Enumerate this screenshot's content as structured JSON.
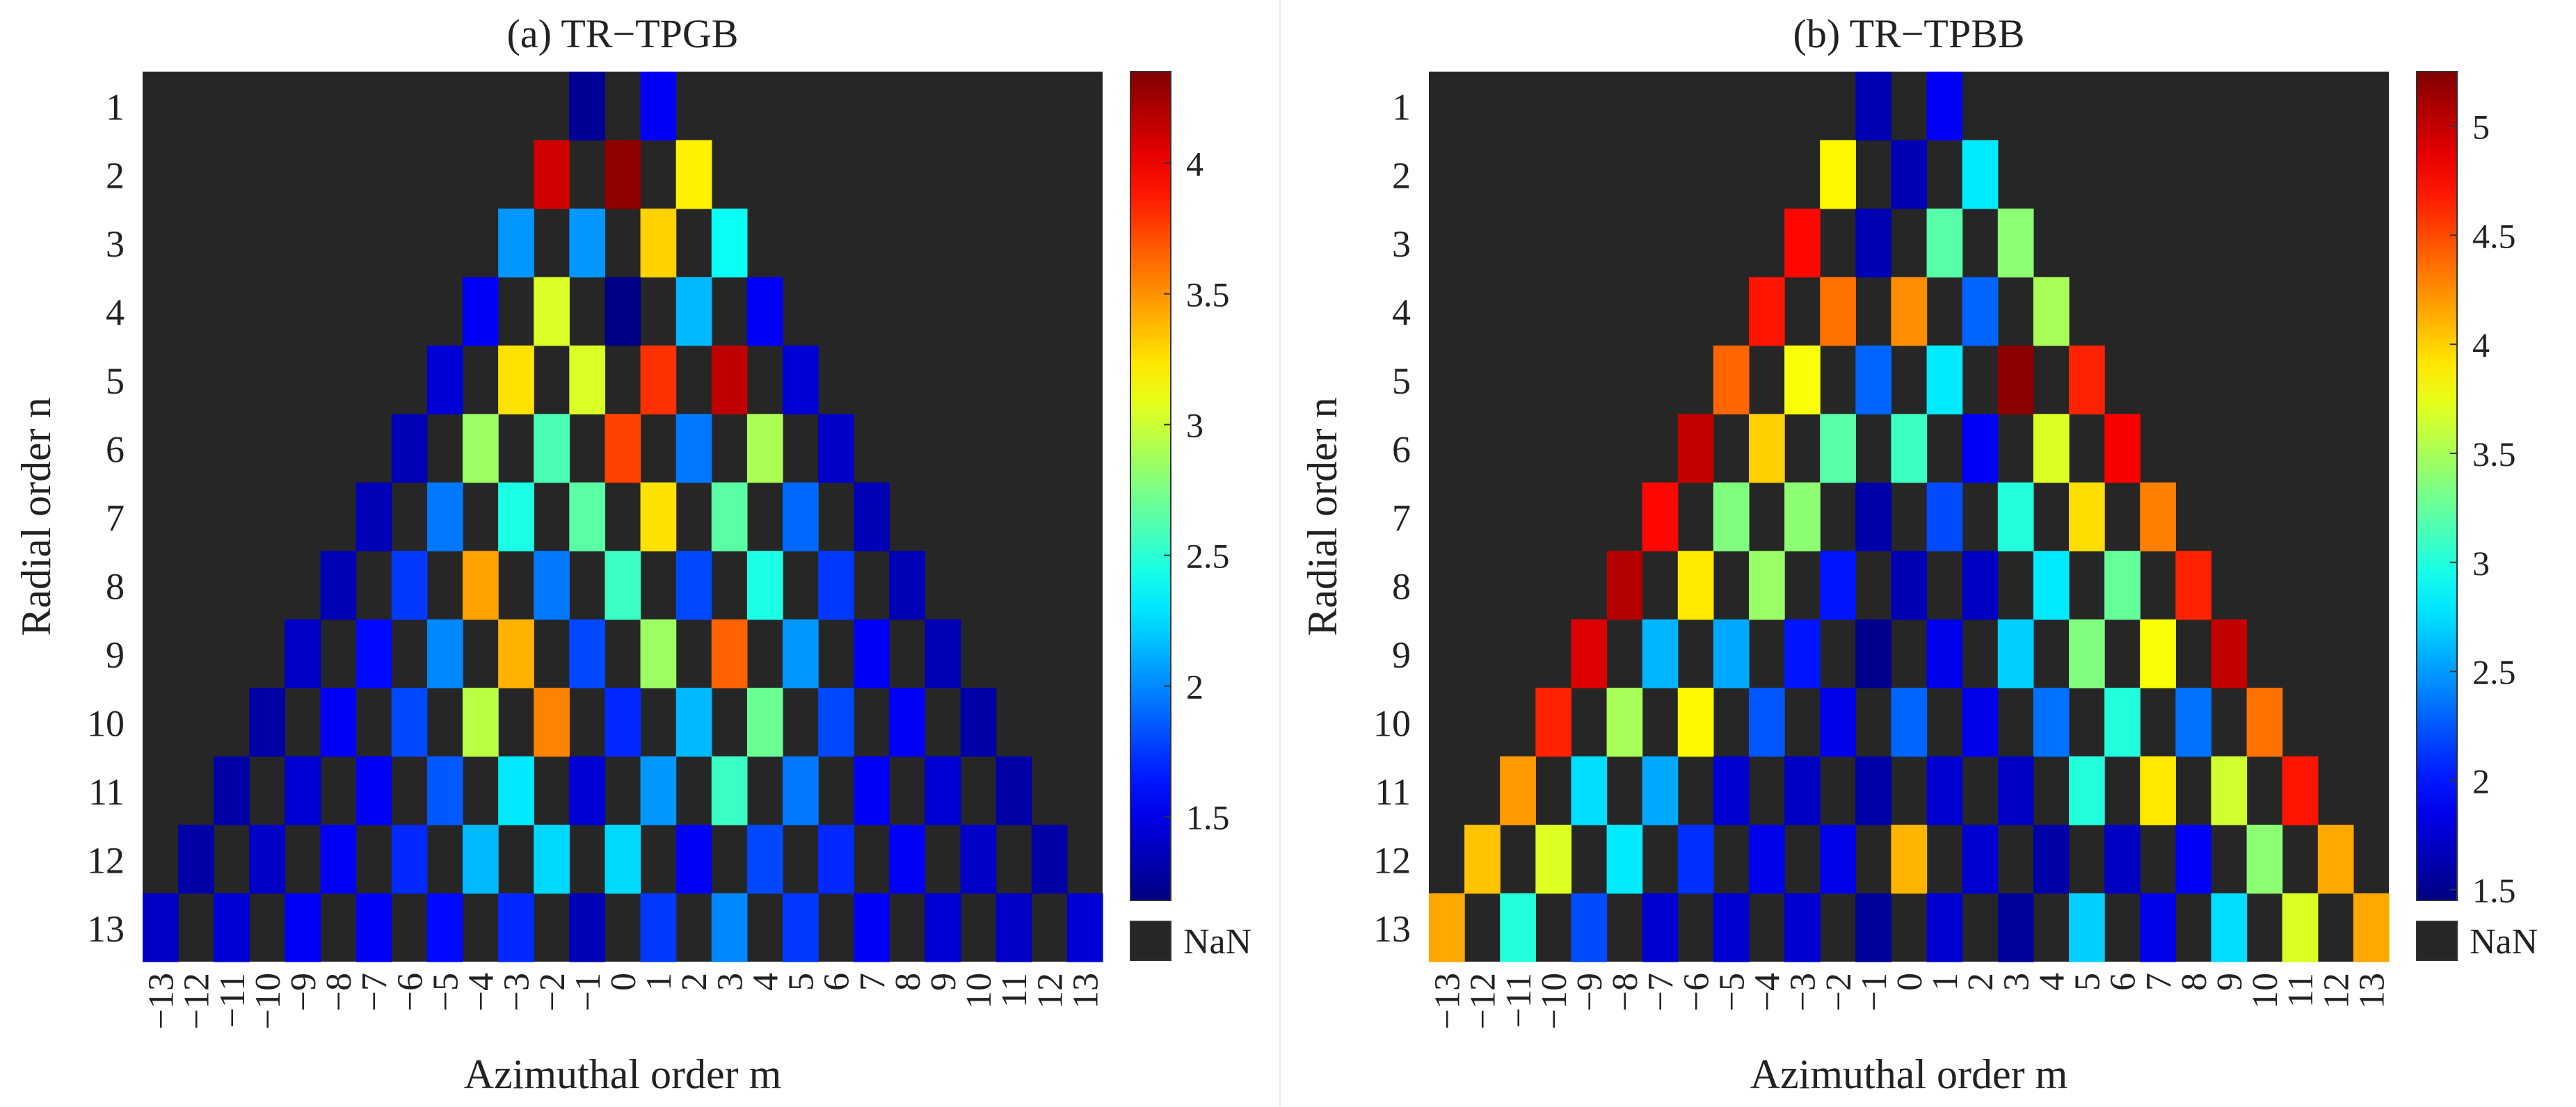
{
  "chart_data": [
    {
      "type": "heatmap",
      "title": "(a) TR−TPGB",
      "xlabel": "Azimuthal order m",
      "ylabel": "Radial order n",
      "x_ticks": [
        "−13",
        "−12",
        "−11",
        "−10",
        "−9",
        "−8",
        "−7",
        "−6",
        "−5",
        "−4",
        "−3",
        "−2",
        "−1",
        "0",
        "1",
        "2",
        "3",
        "4",
        "5",
        "6",
        "7",
        "8",
        "9",
        "10",
        "11",
        "12",
        "13"
      ],
      "y_ticks": [
        "1",
        "2",
        "3",
        "4",
        "5",
        "6",
        "7",
        "8",
        "9",
        "10",
        "11",
        "12",
        "13"
      ],
      "colorbar": {
        "range": [
          1.18,
          4.35
        ],
        "ticks": [
          "1.5",
          "2",
          "2.5",
          "3",
          "3.5",
          "4"
        ],
        "nan_label": "NaN"
      },
      "missing_color": "#262626",
      "rows": [
        {
          "n": 1,
          "m_start": -1,
          "values": [
            1.25,
            1.55
          ]
        },
        {
          "n": 2,
          "m_start": -2,
          "values": [
            4.1,
            4.3,
            3.2
          ]
        },
        {
          "n": 3,
          "m_start": -3,
          "values": [
            2.05,
            2.05,
            3.3,
            2.4
          ]
        },
        {
          "n": 4,
          "m_start": -4,
          "values": [
            1.55,
            3.05,
            1.2,
            2.15,
            1.55
          ]
        },
        {
          "n": 5,
          "m_start": -5,
          "values": [
            1.45,
            3.25,
            3.05,
            3.8,
            4.15,
            1.45
          ]
        },
        {
          "n": 6,
          "m_start": -6,
          "values": [
            1.35,
            2.85,
            2.6,
            3.75,
            1.95,
            2.9,
            1.4
          ]
        },
        {
          "n": 7,
          "m_start": -7,
          "values": [
            1.35,
            1.95,
            2.45,
            2.65,
            3.25,
            2.65,
            1.9,
            1.35
          ]
        },
        {
          "n": 8,
          "m_start": -8,
          "values": [
            1.35,
            1.75,
            3.45,
            1.95,
            2.55,
            1.8,
            2.45,
            1.75,
            1.35
          ]
        },
        {
          "n": 9,
          "m_start": -9,
          "values": [
            1.4,
            1.6,
            2.0,
            3.4,
            1.8,
            2.85,
            3.65,
            2.05,
            1.55,
            1.35
          ]
        },
        {
          "n": 10,
          "m_start": -10,
          "values": [
            1.3,
            1.55,
            1.8,
            2.95,
            3.55,
            1.7,
            2.15,
            2.7,
            1.8,
            1.55,
            1.3
          ]
        },
        {
          "n": 11,
          "m_start": -11,
          "values": [
            1.3,
            1.45,
            1.55,
            1.85,
            2.3,
            1.45,
            2.05,
            2.55,
            1.95,
            1.55,
            1.45,
            1.3
          ]
        },
        {
          "n": 12,
          "m_start": -12,
          "values": [
            1.3,
            1.4,
            1.55,
            1.7,
            2.15,
            2.25,
            2.25,
            1.55,
            1.8,
            1.7,
            1.55,
            1.4,
            1.3
          ]
        },
        {
          "n": 13,
          "m_start": -13,
          "values": [
            1.4,
            1.45,
            1.55,
            1.55,
            1.6,
            1.7,
            1.35,
            1.75,
            2.0,
            1.75,
            1.55,
            1.45,
            1.4,
            1.45
          ]
        }
      ]
    },
    {
      "type": "heatmap",
      "title": "(b) TR−TPBB",
      "xlabel": "Azimuthal order m",
      "ylabel": "Radial order n",
      "x_ticks": [
        "−13",
        "−12",
        "−11",
        "−10",
        "−9",
        "−8",
        "−7",
        "−6",
        "−5",
        "−4",
        "−3",
        "−2",
        "−1",
        "0",
        "1",
        "2",
        "3",
        "4",
        "5",
        "6",
        "7",
        "8",
        "9",
        "10",
        "11",
        "12",
        "13"
      ],
      "y_ticks": [
        "1",
        "2",
        "3",
        "4",
        "5",
        "6",
        "7",
        "8",
        "9",
        "10",
        "11",
        "12",
        "13"
      ],
      "colorbar": {
        "range": [
          1.45,
          5.25
        ],
        "ticks": [
          "1.5",
          "2",
          "2.5",
          "3",
          "3.5",
          "4",
          "4.5",
          "5"
        ],
        "nan_label": "NaN"
      },
      "missing_color": "#262626",
      "rows": [
        {
          "n": 1,
          "m_start": -1,
          "values": [
            1.65,
            1.9
          ]
        },
        {
          "n": 2,
          "m_start": -2,
          "values": [
            3.85,
            1.65,
            2.8
          ]
        },
        {
          "n": 3,
          "m_start": -3,
          "values": [
            4.75,
            1.65,
            3.2,
            3.4
          ]
        },
        {
          "n": 4,
          "m_start": -4,
          "values": [
            4.7,
            4.35,
            4.25,
            2.3,
            3.5
          ]
        },
        {
          "n": 5,
          "m_start": -5,
          "values": [
            4.4,
            3.8,
            2.3,
            2.8,
            5.2,
            4.65
          ]
        },
        {
          "n": 6,
          "m_start": -6,
          "values": [
            5.0,
            4.0,
            3.2,
            3.1,
            1.9,
            3.7,
            4.8
          ]
        },
        {
          "n": 7,
          "m_start": -7,
          "values": [
            4.75,
            3.35,
            3.4,
            1.6,
            2.2,
            3.0,
            3.95,
            4.3
          ]
        },
        {
          "n": 8,
          "m_start": -8,
          "values": [
            5.05,
            3.9,
            3.45,
            2.0,
            1.65,
            1.7,
            2.8,
            3.25,
            4.65
          ]
        },
        {
          "n": 9,
          "m_start": -9,
          "values": [
            4.9,
            2.6,
            2.55,
            2.0,
            1.5,
            1.85,
            2.7,
            3.35,
            3.8,
            5.0
          ]
        },
        {
          "n": 10,
          "m_start": -10,
          "values": [
            4.65,
            3.5,
            3.85,
            2.25,
            1.85,
            2.3,
            1.85,
            2.35,
            3.0,
            2.35,
            4.35
          ]
        },
        {
          "n": 11,
          "m_start": -11,
          "values": [
            4.2,
            2.75,
            2.55,
            1.75,
            1.7,
            1.6,
            1.75,
            1.7,
            3.0,
            3.9,
            3.65,
            4.7
          ]
        },
        {
          "n": 12,
          "m_start": -12,
          "values": [
            4.05,
            3.7,
            2.8,
            2.1,
            1.85,
            1.85,
            4.1,
            1.75,
            1.6,
            1.7,
            1.9,
            3.4,
            4.15
          ]
        },
        {
          "n": 13,
          "m_start": -13,
          "values": [
            4.15,
            3.0,
            2.2,
            1.75,
            1.75,
            1.75,
            1.55,
            1.75,
            1.55,
            2.7,
            1.85,
            2.75,
            3.7,
            4.15
          ]
        }
      ]
    }
  ]
}
